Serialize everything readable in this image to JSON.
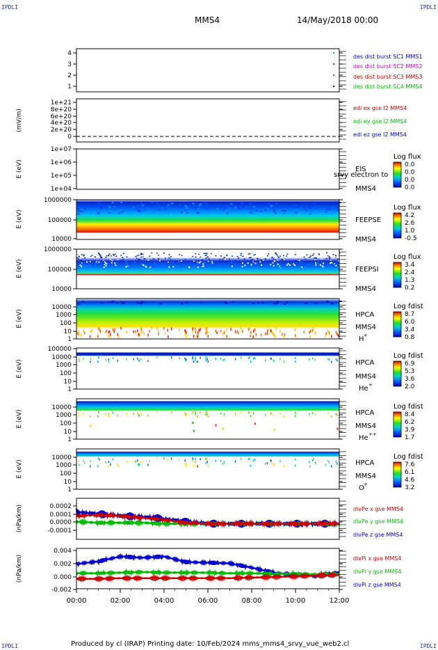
{
  "corners": {
    "tl": "IPDLI",
    "tr": "IPDLI",
    "bl": "IPDLI",
    "br": "IPDLI"
  },
  "header": {
    "spacecraft": "MMS4",
    "date": "14/May/2018 00:00"
  },
  "footer": {
    "text": "Produced by cl (IRAP)   Printing date: 10/Feb/2024   mms_mms4_srvy_vue_web2.cl"
  },
  "colors": {
    "panel_border": "#000000",
    "blue": "#0000cc",
    "magenta": "#cc00cc",
    "red": "#cc0000",
    "green": "#00bb00",
    "yellow": "#ffff00"
  },
  "chart_data": [
    {
      "type": "scatter",
      "yticks": [
        "1",
        "2",
        "3",
        "4"
      ],
      "ylim": [
        1,
        4
      ],
      "legend": [
        {
          "text": "des dist burst SC1 MMS1",
          "color": "#0000cc"
        },
        {
          "text": "des dist burst SC2 MMS2",
          "color": "#cc00cc"
        },
        {
          "text": "des dist burst SC3 MMS3",
          "color": "#cc0000"
        },
        {
          "text": "des dist burst SC4 MMS4",
          "color": "#00bb00"
        }
      ],
      "series": [
        {
          "values": [
            [
              11.75,
              1
            ]
          ]
        },
        {
          "values": [
            [
              11.75,
              2
            ]
          ]
        },
        {
          "values": [
            [
              11.75,
              3
            ]
          ]
        },
        {
          "values": [
            [
              11.75,
              4
            ]
          ]
        }
      ]
    },
    {
      "type": "line",
      "ylabel": "(mV/m)",
      "yticks": [
        "0",
        "2e+20",
        "4e+20",
        "6e+20",
        "8e+20",
        "1e+21"
      ],
      "ylim": [
        0,
        1e+21
      ],
      "legend": [
        {
          "text": "edi ex gse l2 MMS4",
          "color": "#cc0000"
        },
        {
          "text": "edi ey gse l2 MMS4",
          "color": "#00bb00"
        },
        {
          "text": "edi ez gse l2 MMS4",
          "color": "#0000cc"
        }
      ]
    },
    {
      "type": "heatmap",
      "ylabel": "E (eV)",
      "yticks": [
        "1e+04",
        "1e+05",
        "1e+06",
        "1e+07"
      ],
      "labels": [
        "EIS",
        "MMS4"
      ],
      "overlay": "srvy electron to",
      "colorbar": {
        "title": "Log flux",
        "ticks": [
          "0.0",
          "0.0",
          "0.0",
          "0.0"
        ]
      }
    },
    {
      "type": "heatmap",
      "ylabel": "E (eV)",
      "yticks": [
        "10000",
        "100000",
        "1000000"
      ],
      "labels": [
        "FEEPSE",
        "MMS4"
      ],
      "colorbar": {
        "title": "Log flux",
        "ticks": [
          "4.2",
          "2.6",
          "1.0",
          "-0.5"
        ]
      }
    },
    {
      "type": "heatmap",
      "ylabel": "E (eV)",
      "yticks": [
        "10000",
        "100000",
        "1000000"
      ],
      "labels": [
        "FEEPSI",
        "MMS4"
      ],
      "colorbar": {
        "title": "Log flux",
        "ticks": [
          "3.4",
          "2.4",
          "1.3",
          "0.2"
        ]
      }
    },
    {
      "type": "heatmap",
      "ylabel": "E (eV)",
      "yticks": [
        "1",
        "10",
        "100",
        "1000",
        "10000"
      ],
      "labels": [
        "HPCA",
        "MMS4"
      ],
      "species": "H",
      "charge": "+",
      "colorbar": {
        "title": "Log fdist",
        "ticks": [
          "8.7",
          "6.0",
          "3.4",
          "0.8"
        ]
      }
    },
    {
      "type": "heatmap",
      "ylabel": "E (eV)",
      "yticks": [
        "1",
        "10",
        "100",
        "1000",
        "10000",
        "100000"
      ],
      "labels": [
        "HPCA",
        "MMS4"
      ],
      "species": "He",
      "charge": "+",
      "colorbar": {
        "title": "Log fdist",
        "ticks": [
          "6.9",
          "5.3",
          "3.6",
          "2.0"
        ]
      }
    },
    {
      "type": "heatmap",
      "ylabel": "E (eV)",
      "yticks": [
        "1",
        "10",
        "100",
        "1000",
        "10000"
      ],
      "labels": [
        "HPCA",
        "MMS4"
      ],
      "species": "He",
      "charge": "++",
      "colorbar": {
        "title": "Log fdist",
        "ticks": [
          "8.4",
          "6.2",
          "3.9",
          "1.7"
        ]
      }
    },
    {
      "type": "heatmap",
      "ylabel": "E (eV)",
      "yticks": [
        "1",
        "10",
        "100",
        "1000",
        "10000"
      ],
      "labels": [
        "HPCA",
        "MMS4"
      ],
      "species": "O",
      "charge": "+",
      "colorbar": {
        "title": "Log fdist",
        "ticks": [
          "7.6",
          "6.1",
          "4.6",
          "3.2"
        ]
      }
    },
    {
      "type": "line",
      "ylabel": "(nPa/km)",
      "yticks": [
        "-0.0001",
        "0.0000",
        "0.0001",
        "0.0002"
      ],
      "ylim": [
        -0.00016,
        0.00026
      ],
      "legend": [
        {
          "text": "divPe x gse MMS4",
          "color": "#cc0000"
        },
        {
          "text": "divPe y gse MMS4",
          "color": "#00bb00"
        },
        {
          "text": "divPe z gse MMS4",
          "color": "#0000cc"
        }
      ],
      "series": [
        {
          "name": "divPe x gse MMS4",
          "values": [
            [
              0,
              8e-05
            ],
            [
              1,
              9e-05
            ],
            [
              2,
              8e-05
            ],
            [
              3,
              6e-05
            ],
            [
              4,
              4e-05
            ],
            [
              5,
              1e-05
            ],
            [
              6,
              0.0
            ],
            [
              7,
              0.0
            ],
            [
              8,
              0.0
            ],
            [
              9,
              0.0
            ],
            [
              10,
              0.0
            ],
            [
              11,
              0.0
            ],
            [
              12,
              0.0
            ]
          ]
        },
        {
          "name": "divPe y gse MMS4",
          "values": [
            [
              0,
              2e-05
            ],
            [
              1,
              1e-05
            ],
            [
              2,
              1e-05
            ],
            [
              3,
              1e-05
            ],
            [
              4,
              0.0
            ],
            [
              5,
              0.0
            ],
            [
              6,
              0.0
            ],
            [
              7,
              0.0
            ],
            [
              8,
              0.0
            ],
            [
              9,
              0.0
            ],
            [
              10,
              0.0
            ],
            [
              11,
              0.0
            ],
            [
              12,
              -1e-05
            ]
          ]
        },
        {
          "name": "divPe z gse MMS4",
          "values": [
            [
              0,
              0.00012
            ],
            [
              1,
              0.0001
            ],
            [
              2,
              8e-05
            ],
            [
              3,
              7e-05
            ],
            [
              4,
              5e-05
            ],
            [
              5,
              2e-05
            ],
            [
              6,
              0.0
            ],
            [
              7,
              0.0
            ],
            [
              8,
              0.0
            ],
            [
              9,
              0.0
            ],
            [
              10,
              0.0
            ],
            [
              11,
              0.0
            ],
            [
              12,
              0.0
            ]
          ]
        }
      ]
    },
    {
      "type": "line",
      "ylabel": "(nPa/km)",
      "yticks": [
        "-0.002",
        "0.000",
        "0.002",
        "0.004"
      ],
      "ylim": [
        -0.0022,
        0.0043
      ],
      "legend": [
        {
          "text": "divPi x gse MMS4",
          "color": "#cc0000"
        },
        {
          "text": "divPi y gse MMS4",
          "color": "#00bb00"
        },
        {
          "text": "divPi z gse MMS4",
          "color": "#0000cc"
        }
      ],
      "series": [
        {
          "name": "divPi x gse MMS4",
          "values": [
            [
              0,
              -0.0006
            ],
            [
              1,
              -0.0006
            ],
            [
              2,
              -0.0005
            ],
            [
              3,
              -0.0005
            ],
            [
              4,
              -0.0005
            ],
            [
              5,
              -0.0005
            ],
            [
              6,
              -0.0005
            ],
            [
              7,
              -0.0005
            ],
            [
              8,
              -0.0004
            ],
            [
              9,
              -0.0003
            ],
            [
              10,
              -0.0002
            ],
            [
              11,
              -0.0001
            ],
            [
              12,
              0.0
            ]
          ]
        },
        {
          "name": "divPi y gse MMS4",
          "values": [
            [
              0,
              0.0003
            ],
            [
              1,
              0.0003
            ],
            [
              2,
              0.0004
            ],
            [
              3,
              0.0005
            ],
            [
              4,
              0.0004
            ],
            [
              5,
              0.0004
            ],
            [
              6,
              0.0004
            ],
            [
              7,
              0.0003
            ],
            [
              8,
              0.0003
            ],
            [
              9,
              0.0002
            ],
            [
              10,
              0.0002
            ],
            [
              11,
              0.0001
            ],
            [
              12,
              0.0002
            ]
          ]
        },
        {
          "name": "divPi z gse MMS4",
          "values": [
            [
              0,
              0.0018
            ],
            [
              1,
              0.0022
            ],
            [
              2,
              0.003
            ],
            [
              3,
              0.0028
            ],
            [
              4,
              0.003
            ],
            [
              5,
              0.0021
            ],
            [
              6,
              0.002
            ],
            [
              7,
              0.0019
            ],
            [
              8,
              0.0012
            ],
            [
              9,
              0.0004
            ],
            [
              10,
              0.0
            ],
            [
              11,
              -0.0001
            ],
            [
              12,
              0.0005
            ]
          ]
        }
      ]
    }
  ],
  "time_axis": {
    "ticks": [
      "00:00",
      "02:00",
      "04:00",
      "06:00",
      "08:00",
      "10:00",
      "12:00"
    ],
    "xlim": [
      0,
      12
    ]
  }
}
